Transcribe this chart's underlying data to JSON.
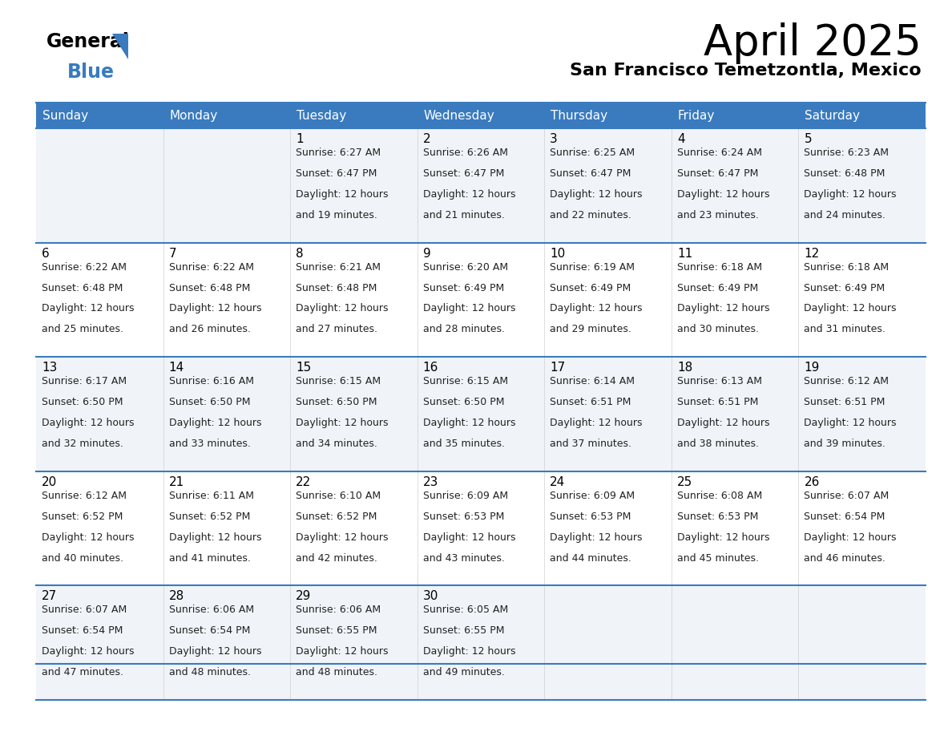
{
  "title": "April 2025",
  "subtitle": "San Francisco Temetzontla, Mexico",
  "header_bg": "#3a7bbf",
  "header_text": "#ffffff",
  "row_bg_even": "#f0f4f8",
  "row_bg_odd": "#ffffff",
  "divider_color": "#3a7bbf",
  "cell_border_color": "#c0c0c0",
  "day_names": [
    "Sunday",
    "Monday",
    "Tuesday",
    "Wednesday",
    "Thursday",
    "Friday",
    "Saturday"
  ],
  "calendar": [
    [
      {
        "day": "",
        "sunrise": "",
        "sunset": "",
        "minutes": ""
      },
      {
        "day": "",
        "sunrise": "",
        "sunset": "",
        "minutes": ""
      },
      {
        "day": "1",
        "sunrise": "6:27 AM",
        "sunset": "6:47 PM",
        "minutes": "and 19 minutes."
      },
      {
        "day": "2",
        "sunrise": "6:26 AM",
        "sunset": "6:47 PM",
        "minutes": "and 21 minutes."
      },
      {
        "day": "3",
        "sunrise": "6:25 AM",
        "sunset": "6:47 PM",
        "minutes": "and 22 minutes."
      },
      {
        "day": "4",
        "sunrise": "6:24 AM",
        "sunset": "6:47 PM",
        "minutes": "and 23 minutes."
      },
      {
        "day": "5",
        "sunrise": "6:23 AM",
        "sunset": "6:48 PM",
        "minutes": "and 24 minutes."
      }
    ],
    [
      {
        "day": "6",
        "sunrise": "6:22 AM",
        "sunset": "6:48 PM",
        "minutes": "and 25 minutes."
      },
      {
        "day": "7",
        "sunrise": "6:22 AM",
        "sunset": "6:48 PM",
        "minutes": "and 26 minutes."
      },
      {
        "day": "8",
        "sunrise": "6:21 AM",
        "sunset": "6:48 PM",
        "minutes": "and 27 minutes."
      },
      {
        "day": "9",
        "sunrise": "6:20 AM",
        "sunset": "6:49 PM",
        "minutes": "and 28 minutes."
      },
      {
        "day": "10",
        "sunrise": "6:19 AM",
        "sunset": "6:49 PM",
        "minutes": "and 29 minutes."
      },
      {
        "day": "11",
        "sunrise": "6:18 AM",
        "sunset": "6:49 PM",
        "minutes": "and 30 minutes."
      },
      {
        "day": "12",
        "sunrise": "6:18 AM",
        "sunset": "6:49 PM",
        "minutes": "and 31 minutes."
      }
    ],
    [
      {
        "day": "13",
        "sunrise": "6:17 AM",
        "sunset": "6:50 PM",
        "minutes": "and 32 minutes."
      },
      {
        "day": "14",
        "sunrise": "6:16 AM",
        "sunset": "6:50 PM",
        "minutes": "and 33 minutes."
      },
      {
        "day": "15",
        "sunrise": "6:15 AM",
        "sunset": "6:50 PM",
        "minutes": "and 34 minutes."
      },
      {
        "day": "16",
        "sunrise": "6:15 AM",
        "sunset": "6:50 PM",
        "minutes": "and 35 minutes."
      },
      {
        "day": "17",
        "sunrise": "6:14 AM",
        "sunset": "6:51 PM",
        "minutes": "and 37 minutes."
      },
      {
        "day": "18",
        "sunrise": "6:13 AM",
        "sunset": "6:51 PM",
        "minutes": "and 38 minutes."
      },
      {
        "day": "19",
        "sunrise": "6:12 AM",
        "sunset": "6:51 PM",
        "minutes": "and 39 minutes."
      }
    ],
    [
      {
        "day": "20",
        "sunrise": "6:12 AM",
        "sunset": "6:52 PM",
        "minutes": "and 40 minutes."
      },
      {
        "day": "21",
        "sunrise": "6:11 AM",
        "sunset": "6:52 PM",
        "minutes": "and 41 minutes."
      },
      {
        "day": "22",
        "sunrise": "6:10 AM",
        "sunset": "6:52 PM",
        "minutes": "and 42 minutes."
      },
      {
        "day": "23",
        "sunrise": "6:09 AM",
        "sunset": "6:53 PM",
        "minutes": "and 43 minutes."
      },
      {
        "day": "24",
        "sunrise": "6:09 AM",
        "sunset": "6:53 PM",
        "minutes": "and 44 minutes."
      },
      {
        "day": "25",
        "sunrise": "6:08 AM",
        "sunset": "6:53 PM",
        "minutes": "and 45 minutes."
      },
      {
        "day": "26",
        "sunrise": "6:07 AM",
        "sunset": "6:54 PM",
        "minutes": "and 46 minutes."
      }
    ],
    [
      {
        "day": "27",
        "sunrise": "6:07 AM",
        "sunset": "6:54 PM",
        "minutes": "and 47 minutes."
      },
      {
        "day": "28",
        "sunrise": "6:06 AM",
        "sunset": "6:54 PM",
        "minutes": "and 48 minutes."
      },
      {
        "day": "29",
        "sunrise": "6:06 AM",
        "sunset": "6:55 PM",
        "minutes": "and 48 minutes."
      },
      {
        "day": "30",
        "sunrise": "6:05 AM",
        "sunset": "6:55 PM",
        "minutes": "and 49 minutes."
      },
      {
        "day": "",
        "sunrise": "",
        "sunset": "",
        "minutes": ""
      },
      {
        "day": "",
        "sunrise": "",
        "sunset": "",
        "minutes": ""
      },
      {
        "day": "",
        "sunrise": "",
        "sunset": "",
        "minutes": ""
      }
    ]
  ],
  "logo_arrow_color": "#3a7bbf",
  "title_fontsize": 38,
  "subtitle_fontsize": 16,
  "header_fontsize": 11,
  "day_num_fontsize": 11,
  "cell_fontsize": 9
}
